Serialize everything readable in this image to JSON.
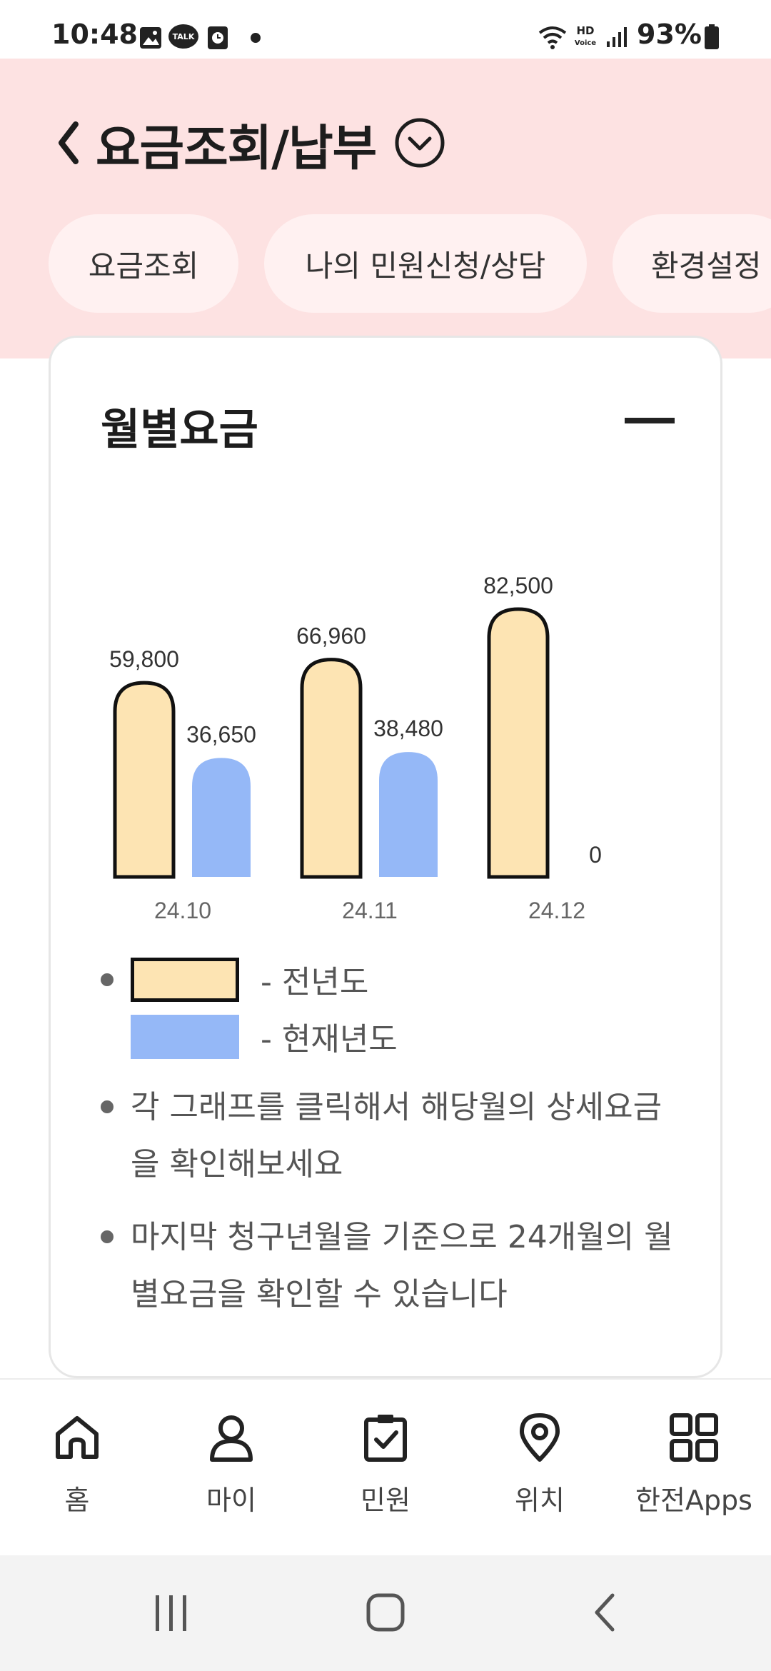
{
  "status_bar": {
    "time": "10:48",
    "battery": "93%",
    "icons": [
      "gallery-icon",
      "talk-icon",
      "clock-app-icon",
      "dot-icon",
      "wifi-icon",
      "hd-voice-icon",
      "signal-icon",
      "battery-icon"
    ],
    "talk_badge": "TALK"
  },
  "header": {
    "title": "요금조회/납부",
    "background": "#fde2e2",
    "chips": [
      {
        "label": "요금조회"
      },
      {
        "label": "나의 민원신청/상담"
      },
      {
        "label": "환경설정"
      }
    ]
  },
  "card": {
    "title": "월별요금"
  },
  "chart_data": {
    "type": "bar",
    "categories": [
      "24.10",
      "24.11",
      "24.12"
    ],
    "series": [
      {
        "name": "전년도",
        "values": [
          59800,
          66960,
          82500
        ],
        "labels": [
          "59,800",
          "66,960",
          "82,500"
        ],
        "color": "#fde4b3"
      },
      {
        "name": "현재년도",
        "values": [
          36650,
          38480,
          0
        ],
        "labels": [
          "36,650",
          "38,480",
          "0"
        ],
        "color": "#95b8f7"
      }
    ],
    "ylim": [
      0,
      82500
    ]
  },
  "legend": {
    "prev_year": "- 전년도",
    "curr_year": "- 현재년도"
  },
  "notes": [
    "각 그래프를 클릭해서 해당월의 상세요금을 확인해보세요",
    "마지막 청구년월을 기준으로 24개월의 월별요금을 확인할 수 있습니다"
  ],
  "bottom_nav": [
    {
      "label": "홈",
      "icon": "home-icon"
    },
    {
      "label": "마이",
      "icon": "person-icon"
    },
    {
      "label": "민원",
      "icon": "clipboard-check-icon"
    },
    {
      "label": "위치",
      "icon": "location-pin-icon"
    },
    {
      "label": "한전Apps",
      "icon": "apps-grid-icon"
    }
  ]
}
